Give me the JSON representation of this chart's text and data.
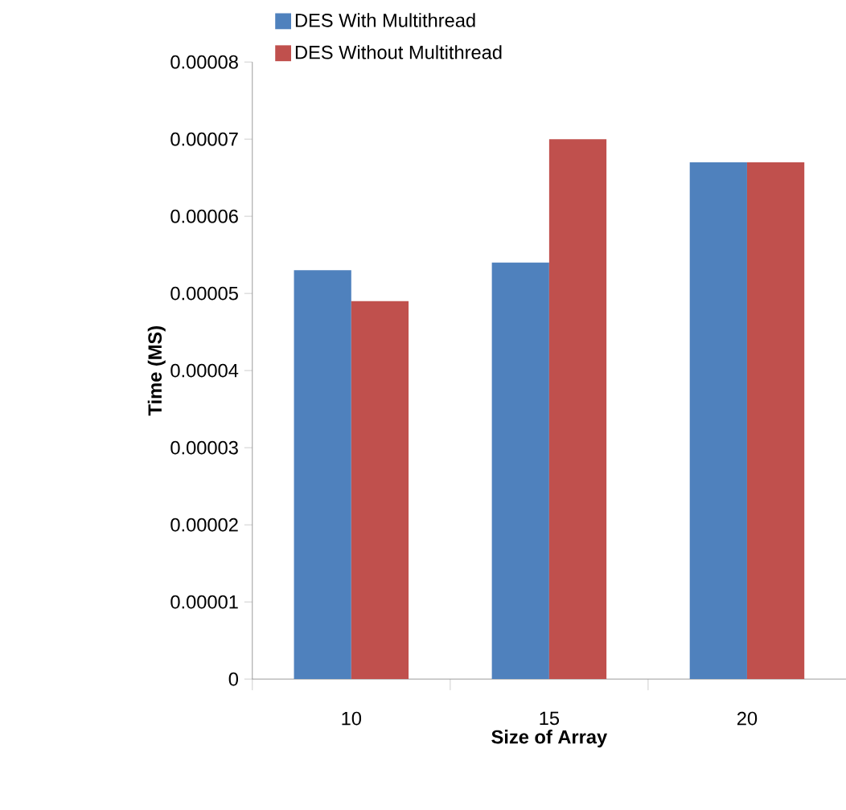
{
  "chart_data": {
    "type": "bar",
    "xlabel": "Size of Array",
    "ylabel": "Time (MS)",
    "categories": [
      "10",
      "15",
      "20"
    ],
    "series": [
      {
        "name": "DES With Multithread",
        "color": "#4f81bd",
        "values": [
          5.3e-05,
          5.4e-05,
          6.7e-05
        ]
      },
      {
        "name": "DES Without Multithread",
        "color": "#c0504d",
        "values": [
          4.9e-05,
          7e-05,
          6.7e-05
        ]
      }
    ],
    "ylim": [
      0,
      8e-05
    ],
    "yticks": [
      {
        "value": 0,
        "label": "0"
      },
      {
        "value": 1e-05,
        "label": "0.00001"
      },
      {
        "value": 2e-05,
        "label": "0.00002"
      },
      {
        "value": 3e-05,
        "label": "0.00003"
      },
      {
        "value": 4e-05,
        "label": "0.00004"
      },
      {
        "value": 5e-05,
        "label": "0.00005"
      },
      {
        "value": 6e-05,
        "label": "0.00006"
      },
      {
        "value": 7e-05,
        "label": "0.00007"
      },
      {
        "value": 8e-05,
        "label": "0.00008"
      }
    ],
    "legend": "top",
    "grid": false
  }
}
